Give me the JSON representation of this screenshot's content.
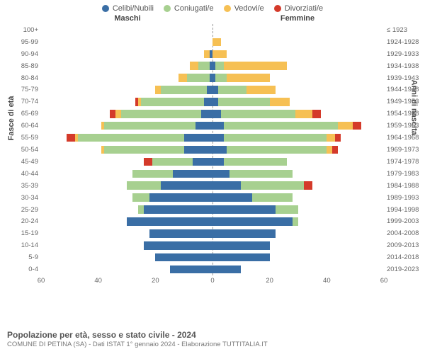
{
  "chart": {
    "type": "population-pyramid",
    "legend": [
      {
        "label": "Celibi/Nubili",
        "color": "#3a6ea5"
      },
      {
        "label": "Coniugati/e",
        "color": "#a7d090"
      },
      {
        "label": "Vedovi/e",
        "color": "#f6c054"
      },
      {
        "label": "Divorziati/e",
        "color": "#d43a2a"
      }
    ],
    "header_left": "Maschi",
    "header_right": "Femmine",
    "y_title_left": "Fasce di età",
    "y_title_right": "Anni di nascita",
    "x_max": 60,
    "x_ticks": [
      60,
      40,
      20,
      0,
      20,
      40,
      60
    ],
    "colors": {
      "single": "#3a6ea5",
      "married": "#a7d090",
      "widowed": "#f6c054",
      "divorced": "#d43a2a",
      "grid": "#e0e0e0",
      "center_line": "#999999",
      "bg": "#ffffff"
    },
    "bar_height_ratio": 0.68,
    "title": "Popolazione per età, sesso e stato civile - 2024",
    "subtitle": "COMUNE DI PETINA (SA) - Dati ISTAT 1° gennaio 2024 - Elaborazione TUTTITALIA.IT",
    "rows": [
      {
        "age": "100+",
        "year": "≤ 1923",
        "m": {
          "s": 0,
          "c": 0,
          "w": 0,
          "d": 0
        },
        "f": {
          "s": 0,
          "c": 0,
          "w": 0,
          "d": 0
        }
      },
      {
        "age": "95-99",
        "year": "1924-1928",
        "m": {
          "s": 0,
          "c": 0,
          "w": 0,
          "d": 0
        },
        "f": {
          "s": 0,
          "c": 0,
          "w": 3,
          "d": 0
        }
      },
      {
        "age": "90-94",
        "year": "1929-1933",
        "m": {
          "s": 1,
          "c": 0,
          "w": 2,
          "d": 0
        },
        "f": {
          "s": 0,
          "c": 0,
          "w": 5,
          "d": 0
        }
      },
      {
        "age": "85-89",
        "year": "1934-1938",
        "m": {
          "s": 1,
          "c": 4,
          "w": 3,
          "d": 0
        },
        "f": {
          "s": 1,
          "c": 3,
          "w": 22,
          "d": 0
        }
      },
      {
        "age": "80-84",
        "year": "1939-1943",
        "m": {
          "s": 1,
          "c": 8,
          "w": 3,
          "d": 0
        },
        "f": {
          "s": 1,
          "c": 4,
          "w": 15,
          "d": 0
        }
      },
      {
        "age": "75-79",
        "year": "1944-1948",
        "m": {
          "s": 2,
          "c": 16,
          "w": 2,
          "d": 0
        },
        "f": {
          "s": 2,
          "c": 10,
          "w": 10,
          "d": 0
        }
      },
      {
        "age": "70-74",
        "year": "1949-1953",
        "m": {
          "s": 3,
          "c": 22,
          "w": 1,
          "d": 1
        },
        "f": {
          "s": 2,
          "c": 18,
          "w": 7,
          "d": 0
        }
      },
      {
        "age": "65-69",
        "year": "1954-1958",
        "m": {
          "s": 4,
          "c": 28,
          "w": 2,
          "d": 2
        },
        "f": {
          "s": 3,
          "c": 26,
          "w": 6,
          "d": 3
        }
      },
      {
        "age": "60-64",
        "year": "1959-1963",
        "m": {
          "s": 6,
          "c": 32,
          "w": 1,
          "d": 0
        },
        "f": {
          "s": 4,
          "c": 40,
          "w": 5,
          "d": 3
        }
      },
      {
        "age": "55-59",
        "year": "1964-1968",
        "m": {
          "s": 10,
          "c": 37,
          "w": 1,
          "d": 3
        },
        "f": {
          "s": 4,
          "c": 36,
          "w": 3,
          "d": 2
        }
      },
      {
        "age": "50-54",
        "year": "1969-1973",
        "m": {
          "s": 10,
          "c": 28,
          "w": 1,
          "d": 0
        },
        "f": {
          "s": 5,
          "c": 35,
          "w": 2,
          "d": 2
        }
      },
      {
        "age": "45-49",
        "year": "1974-1978",
        "m": {
          "s": 7,
          "c": 14,
          "w": 0,
          "d": 3
        },
        "f": {
          "s": 4,
          "c": 22,
          "w": 0,
          "d": 0
        }
      },
      {
        "age": "40-44",
        "year": "1979-1983",
        "m": {
          "s": 14,
          "c": 14,
          "w": 0,
          "d": 0
        },
        "f": {
          "s": 6,
          "c": 22,
          "w": 0,
          "d": 0
        }
      },
      {
        "age": "35-39",
        "year": "1984-1988",
        "m": {
          "s": 18,
          "c": 12,
          "w": 0,
          "d": 0
        },
        "f": {
          "s": 10,
          "c": 22,
          "w": 0,
          "d": 3
        }
      },
      {
        "age": "30-34",
        "year": "1989-1993",
        "m": {
          "s": 22,
          "c": 6,
          "w": 0,
          "d": 0
        },
        "f": {
          "s": 14,
          "c": 14,
          "w": 0,
          "d": 0
        }
      },
      {
        "age": "25-29",
        "year": "1994-1998",
        "m": {
          "s": 24,
          "c": 2,
          "w": 0,
          "d": 0
        },
        "f": {
          "s": 22,
          "c": 8,
          "w": 0,
          "d": 0
        }
      },
      {
        "age": "20-24",
        "year": "1999-2003",
        "m": {
          "s": 30,
          "c": 0,
          "w": 0,
          "d": 0
        },
        "f": {
          "s": 28,
          "c": 2,
          "w": 0,
          "d": 0
        }
      },
      {
        "age": "15-19",
        "year": "2004-2008",
        "m": {
          "s": 22,
          "c": 0,
          "w": 0,
          "d": 0
        },
        "f": {
          "s": 22,
          "c": 0,
          "w": 0,
          "d": 0
        }
      },
      {
        "age": "10-14",
        "year": "2009-2013",
        "m": {
          "s": 24,
          "c": 0,
          "w": 0,
          "d": 0
        },
        "f": {
          "s": 20,
          "c": 0,
          "w": 0,
          "d": 0
        }
      },
      {
        "age": "5-9",
        "year": "2014-2018",
        "m": {
          "s": 20,
          "c": 0,
          "w": 0,
          "d": 0
        },
        "f": {
          "s": 20,
          "c": 0,
          "w": 0,
          "d": 0
        }
      },
      {
        "age": "0-4",
        "year": "2019-2023",
        "m": {
          "s": 15,
          "c": 0,
          "w": 0,
          "d": 0
        },
        "f": {
          "s": 10,
          "c": 0,
          "w": 0,
          "d": 0
        }
      }
    ]
  }
}
